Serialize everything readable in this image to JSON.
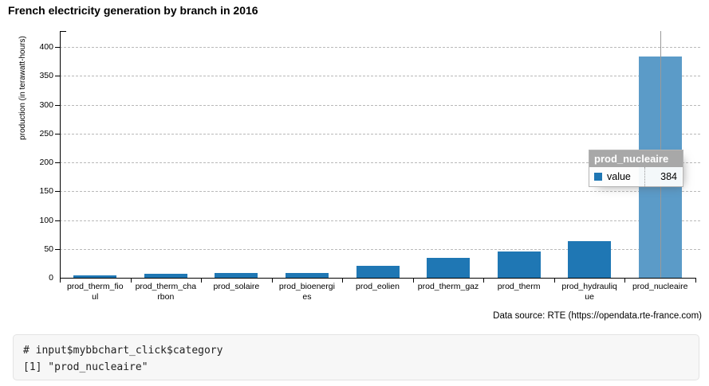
{
  "header": {
    "title": "French electricity generation by branch in 2016"
  },
  "chart_data": {
    "type": "bar",
    "title": "French electricity generation by branch in 2016",
    "categories": [
      "prod_therm_fioul",
      "prod_therm_charbon",
      "prod_solaire",
      "prod_bioenergies",
      "prod_eolien",
      "prod_therm_gaz",
      "prod_therm",
      "prod_hydraulique",
      "prod_nucleaire"
    ],
    "values": [
      4,
      7,
      8,
      8,
      21,
      35,
      46,
      64,
      384
    ],
    "series_name": "value",
    "xlabel": "",
    "ylabel": "production (in terawatt-hours)",
    "ylim": [
      0,
      428
    ],
    "yticks": [
      0,
      50,
      100,
      150,
      200,
      250,
      300,
      350,
      400
    ],
    "grid": "horizontal-dashed",
    "legend": "none",
    "bar_color": "#1f77b4",
    "highlighted_category": "prod_nucleaire",
    "highlighted_bar_color": "#5b9bc8",
    "tick_label_lines": [
      [
        "prod_therm_fio",
        "ul"
      ],
      [
        "prod_therm_cha",
        "rbon"
      ],
      [
        "prod_solaire"
      ],
      [
        "prod_bioenergi",
        "es"
      ],
      [
        "prod_eolien"
      ],
      [
        "prod_therm_gaz"
      ],
      [
        "prod_therm"
      ],
      [
        "prod_hydrauliq",
        "ue"
      ],
      [
        "prod_nucleaire"
      ]
    ]
  },
  "tooltip": {
    "title": "prod_nucleaire",
    "series_label": "value",
    "value": "384",
    "swatch_color": "#1f77b4"
  },
  "caption": {
    "data_source": "Data source: RTE (https://opendata.rte-france.com)"
  },
  "console": {
    "line1": "# input$mybbchart_click$category",
    "line2": "[1] \"prod_nucleaire\""
  }
}
